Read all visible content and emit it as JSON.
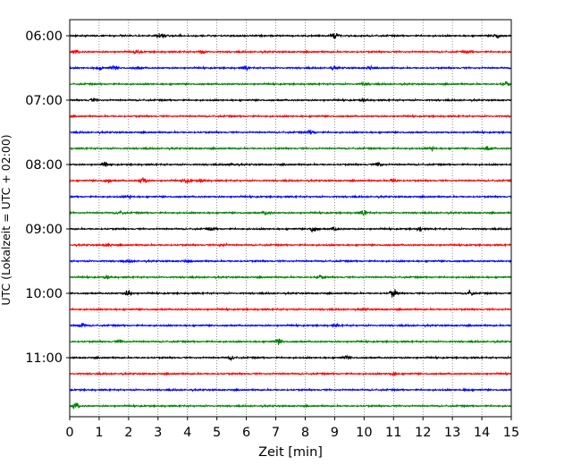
{
  "chart_data": {
    "type": "line",
    "title": "",
    "xlabel": "Zeit  [min]",
    "ylabel": "UTC (Lokalzeit = UTC + 02:00)",
    "xlim": [
      0,
      15
    ],
    "x_ticks": [
      "0",
      "1",
      "2",
      "3",
      "4",
      "5",
      "6",
      "7",
      "8",
      "9",
      "10",
      "11",
      "12",
      "13",
      "14",
      "15"
    ],
    "y_tick_labels": [
      "06:00",
      "07:00",
      "08:00",
      "09:00",
      "10:00",
      "11:00"
    ],
    "grid": "vertical dotted at each minute",
    "row_interval_minutes": 15,
    "colors": [
      "#000000",
      "#ff0000",
      "#0000ff",
      "#008000"
    ],
    "traces": [
      {
        "start": "06:00",
        "color": "#000000",
        "events": [
          [
            3.1,
            0.55
          ],
          [
            9.0,
            0.8
          ],
          [
            14.5,
            0.45
          ]
        ]
      },
      {
        "start": "06:15",
        "color": "#ff0000",
        "events": [
          [
            0.2,
            0.3
          ],
          [
            2.3,
            0.3
          ],
          [
            4.5,
            0.3
          ],
          [
            13.5,
            0.3
          ]
        ]
      },
      {
        "start": "06:30",
        "color": "#0000ff",
        "events": [
          [
            1.0,
            0.35
          ],
          [
            1.5,
            0.35
          ],
          [
            2.3,
            0.3
          ],
          [
            6.0,
            0.3
          ],
          [
            9.0,
            0.3
          ],
          [
            10.2,
            0.3
          ]
        ]
      },
      {
        "start": "06:45",
        "color": "#008000",
        "events": [
          [
            10.0,
            0.3
          ],
          [
            14.8,
            0.4
          ]
        ]
      },
      {
        "start": "07:00",
        "color": "#000000",
        "events": [
          [
            0.8,
            0.3
          ],
          [
            10.0,
            0.3
          ]
        ]
      },
      {
        "start": "07:15",
        "color": "#ff0000",
        "events": []
      },
      {
        "start": "07:30",
        "color": "#0000ff",
        "events": [
          [
            8.2,
            0.35
          ]
        ]
      },
      {
        "start": "07:45",
        "color": "#008000",
        "events": [
          [
            12.3,
            0.3
          ],
          [
            14.2,
            0.55
          ]
        ]
      },
      {
        "start": "08:00",
        "color": "#000000",
        "events": [
          [
            1.2,
            0.3
          ],
          [
            5.5,
            0.3
          ],
          [
            10.5,
            0.45
          ]
        ]
      },
      {
        "start": "08:15",
        "color": "#ff0000",
        "events": [
          [
            1.3,
            0.4
          ],
          [
            2.5,
            0.7
          ],
          [
            4.0,
            0.5
          ],
          [
            4.5,
            0.35
          ],
          [
            11.0,
            0.4
          ]
        ]
      },
      {
        "start": "08:30",
        "color": "#0000ff",
        "events": [
          [
            2.0,
            0.25
          ]
        ]
      },
      {
        "start": "08:45",
        "color": "#008000",
        "events": [
          [
            1.7,
            0.35
          ],
          [
            6.7,
            0.35
          ],
          [
            10.0,
            0.45
          ]
        ]
      },
      {
        "start": "09:00",
        "color": "#000000",
        "events": [
          [
            4.8,
            0.35
          ],
          [
            8.3,
            0.75
          ],
          [
            9.0,
            0.35
          ],
          [
            11.9,
            0.35
          ]
        ]
      },
      {
        "start": "09:15",
        "color": "#ff0000",
        "events": [
          [
            1.3,
            0.3
          ],
          [
            5.2,
            0.3
          ]
        ]
      },
      {
        "start": "09:30",
        "color": "#0000ff",
        "events": [
          [
            2.0,
            0.25
          ],
          [
            4.0,
            0.25
          ]
        ]
      },
      {
        "start": "09:45",
        "color": "#008000",
        "events": [
          [
            1.3,
            0.3
          ],
          [
            8.5,
            0.3
          ]
        ]
      },
      {
        "start": "10:00",
        "color": "#000000",
        "events": [
          [
            2.0,
            0.6
          ],
          [
            11.0,
            0.75
          ],
          [
            13.6,
            0.55
          ]
        ]
      },
      {
        "start": "10:15",
        "color": "#ff0000",
        "events": [
          [
            10.0,
            0.25
          ]
        ]
      },
      {
        "start": "10:30",
        "color": "#0000ff",
        "events": [
          [
            0.4,
            0.5
          ],
          [
            9.0,
            0.25
          ]
        ]
      },
      {
        "start": "10:45",
        "color": "#008000",
        "events": [
          [
            1.7,
            0.3
          ],
          [
            7.1,
            0.55
          ]
        ]
      },
      {
        "start": "11:00",
        "color": "#000000",
        "events": [
          [
            5.5,
            0.3
          ],
          [
            9.4,
            0.3
          ]
        ]
      },
      {
        "start": "11:15",
        "color": "#ff0000",
        "events": [
          [
            11.0,
            0.4
          ]
        ]
      },
      {
        "start": "11:30",
        "color": "#0000ff",
        "events": [
          [
            13.5,
            0.2
          ]
        ]
      },
      {
        "start": "11:45",
        "color": "#008000",
        "events": [
          [
            0.2,
            0.6
          ]
        ]
      }
    ]
  }
}
